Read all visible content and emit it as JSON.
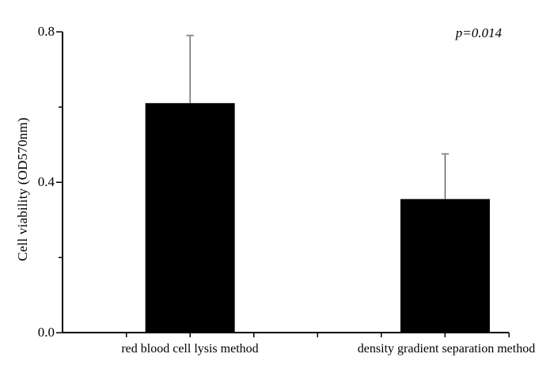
{
  "figure": {
    "background": "#ffffff"
  },
  "chart_data": {
    "type": "bar",
    "title": "",
    "categories": [
      "red blood cell lysis method",
      "density gradient separation method"
    ],
    "values": [
      0.61,
      0.355
    ],
    "errors": [
      0.18,
      0.12
    ],
    "error_bar_caps_at": [
      0.79,
      0.475
    ],
    "xlabel": "",
    "ylabel": "Cell viability (OD570nm)",
    "ylim": [
      0.0,
      0.8
    ],
    "yticks": [
      0.0,
      0.4,
      0.8
    ],
    "ytick_labels": [
      "0.0",
      "0.4",
      "0.8"
    ],
    "yticks_minor": [
      0.2,
      0.6
    ],
    "x_axis_tick_count": 7,
    "bar_tick_positions": [
      2,
      6
    ],
    "annotation": "p=0.014",
    "annotation_style": "italic",
    "grid": false,
    "legend": "none",
    "bar_color": "#000000",
    "axis_color": "#000000",
    "error_line_color": "#4a4a4a",
    "error_cap_color": "#8f8f8f",
    "background": "#ffffff"
  }
}
